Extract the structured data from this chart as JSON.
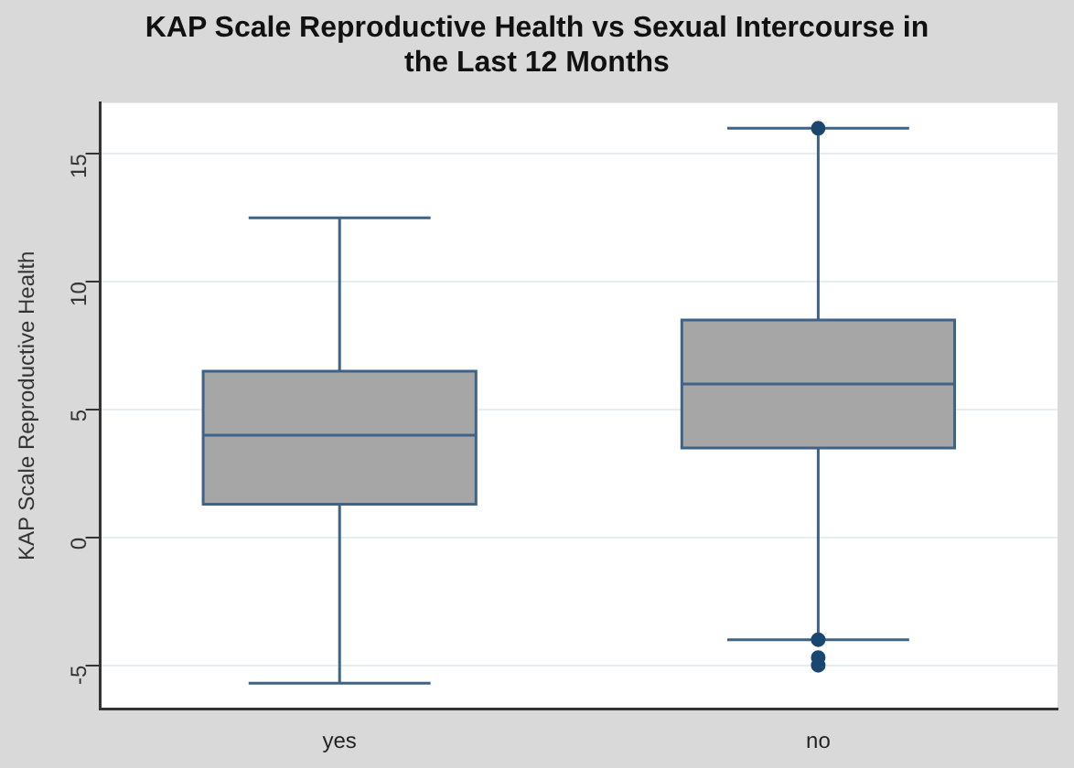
{
  "chart_data": {
    "type": "box",
    "title": "KAP Scale Reproductive Health vs Sexual Intercourse in the Last 12 Months",
    "ylabel": "KAP Scale Reproductive Health",
    "categories": [
      "yes",
      "no"
    ],
    "boxes": [
      {
        "low": -5.7,
        "q1": 1.3,
        "median": 4,
        "q3": 6.5,
        "high": 12.5
      },
      {
        "low": -4,
        "q1": 3.5,
        "median": 6,
        "q3": 8.5,
        "high": 16,
        "outliers": [
          16,
          -4,
          -4.7,
          -5
        ]
      }
    ],
    "color": "#a6a6a6",
    "ylim": [
      -6.7,
      17
    ],
    "yticks": [
      -5,
      0,
      5,
      10,
      15
    ],
    "grid": "y",
    "legend": false
  }
}
